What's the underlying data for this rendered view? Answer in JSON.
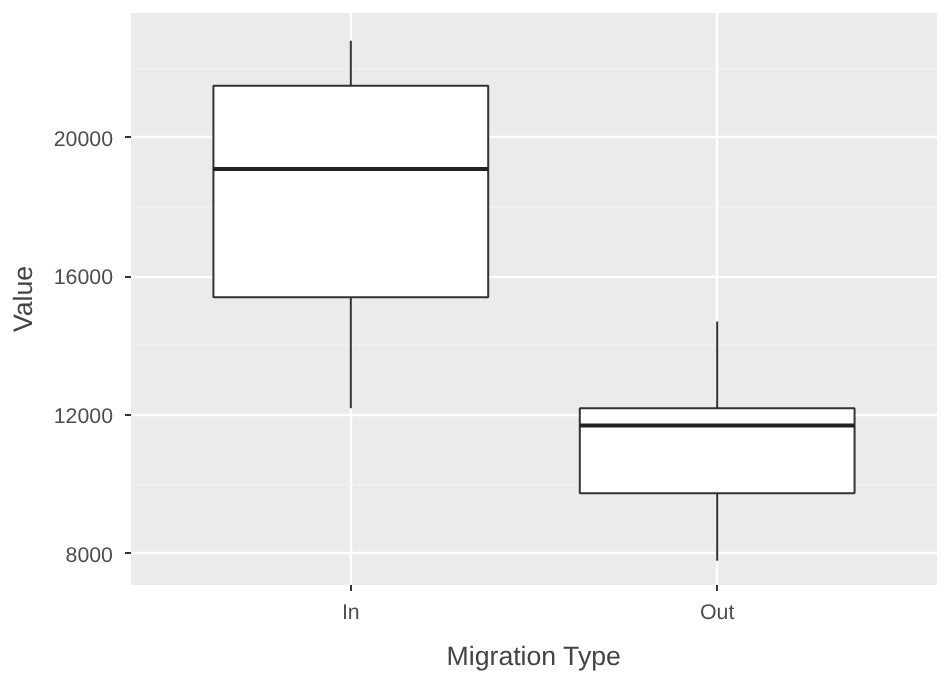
{
  "chart_data": {
    "type": "box",
    "xlabel": "Migration Type",
    "ylabel": "Value",
    "categories": [
      "In",
      "Out"
    ],
    "boxes": [
      {
        "low": 12200,
        "q1": 15400,
        "median": 19100,
        "q3": 21500,
        "high": 22800
      },
      {
        "low": 7800,
        "q1": 9750,
        "median": 11700,
        "q3": 12200,
        "high": 14700
      }
    ],
    "ylim": [
      7100,
      23600
    ],
    "yticks": [
      8000,
      12000,
      16000,
      20000
    ],
    "grid": true
  }
}
